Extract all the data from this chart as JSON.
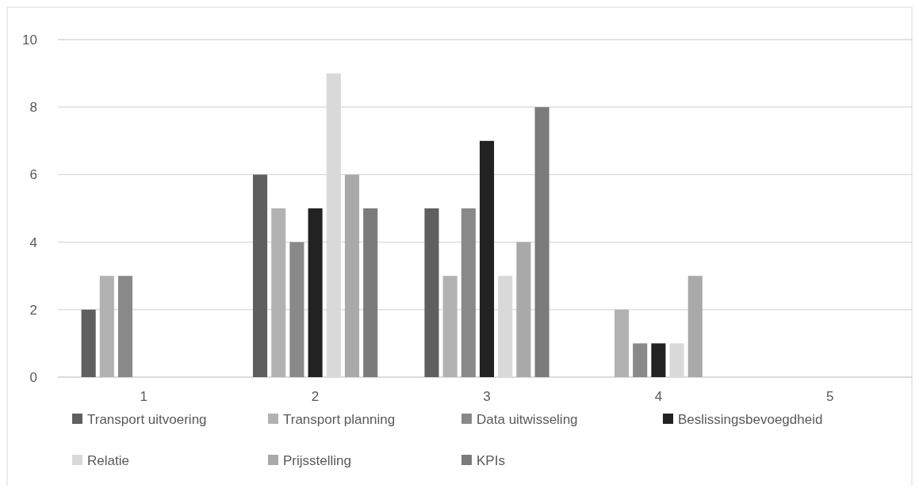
{
  "chart_data": {
    "type": "bar",
    "categories": [
      "1",
      "2",
      "3",
      "4",
      "5"
    ],
    "series": [
      {
        "name": "Transport uitvoering",
        "color": "#5f5f5f",
        "values": [
          2,
          6,
          5,
          0,
          0
        ]
      },
      {
        "name": "Transport planning",
        "color": "#b2b2b2",
        "values": [
          3,
          5,
          3,
          2,
          0
        ]
      },
      {
        "name": "Data uitwisseling",
        "color": "#898989",
        "values": [
          3,
          4,
          5,
          1,
          0
        ]
      },
      {
        "name": "Beslissingsbevoegdheid",
        "color": "#222222",
        "values": [
          0,
          5,
          7,
          1,
          0
        ]
      },
      {
        "name": "Relatie",
        "color": "#d9d9d9",
        "values": [
          0,
          9,
          3,
          1,
          0
        ]
      },
      {
        "name": "Prijsstelling",
        "color": "#a9a9a9",
        "values": [
          0,
          6,
          4,
          3,
          0
        ]
      },
      {
        "name": "KPIs",
        "color": "#7b7b7b",
        "values": [
          0,
          5,
          8,
          0,
          0
        ]
      }
    ],
    "ylim": [
      0,
      10
    ],
    "yticks": [
      0,
      2,
      4,
      6,
      8,
      10
    ],
    "grid": "y",
    "legend": "bottom"
  }
}
